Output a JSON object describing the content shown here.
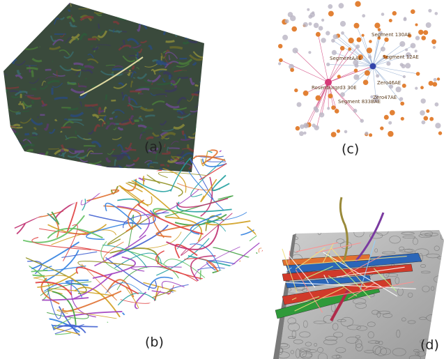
{
  "captions": {
    "a": "(a)",
    "b": "(b)",
    "c": "(c)",
    "d": "(d)"
  },
  "network": {
    "labels": [
      "Segment 130AE",
      "SegmentAAE",
      "Segment 12AE",
      "Rosenburgrd3 30E",
      "Zero46AE",
      "Zero47AE",
      "Segment 833BAE"
    ]
  },
  "colors": {
    "hub_pink": "#d63a78",
    "hub_blue": "#3344aa",
    "node_orange": "#e07a2a",
    "node_grey": "#b9b4c3",
    "edge_blue": "#9fb6d6",
    "edge_pink": "#d65a8c",
    "volume_bg": "#3c4a3a",
    "em_grey": "#b8b8b8"
  }
}
